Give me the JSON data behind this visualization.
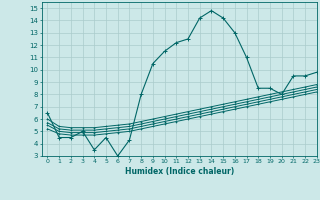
{
  "xlabel": "Humidex (Indice chaleur)",
  "bg_color": "#cce8e8",
  "grid_color": "#aacccc",
  "line_color": "#006666",
  "xlim": [
    -0.5,
    23
  ],
  "ylim": [
    3,
    15.5
  ],
  "xticks": [
    0,
    1,
    2,
    3,
    4,
    5,
    6,
    7,
    8,
    9,
    10,
    11,
    12,
    13,
    14,
    15,
    16,
    17,
    18,
    19,
    20,
    21,
    22,
    23
  ],
  "yticks": [
    3,
    4,
    5,
    6,
    7,
    8,
    9,
    10,
    11,
    12,
    13,
    14,
    15
  ],
  "main_y": [
    6.5,
    4.5,
    4.5,
    5.0,
    3.5,
    4.5,
    3.0,
    4.3,
    8.0,
    10.5,
    11.5,
    12.2,
    12.5,
    14.2,
    14.8,
    14.2,
    13.0,
    11.0,
    8.5,
    8.5,
    8.0,
    9.5,
    9.5,
    9.8
  ],
  "line2_y": [
    5.2,
    4.8,
    4.7,
    4.7,
    4.7,
    4.8,
    4.9,
    5.0,
    5.2,
    5.4,
    5.6,
    5.8,
    6.0,
    6.2,
    6.4,
    6.6,
    6.8,
    7.0,
    7.2,
    7.4,
    7.6,
    7.8,
    8.0,
    8.2
  ],
  "line3_y": [
    5.5,
    5.0,
    4.9,
    4.9,
    4.9,
    5.0,
    5.1,
    5.2,
    5.4,
    5.6,
    5.8,
    6.0,
    6.2,
    6.4,
    6.6,
    6.8,
    7.0,
    7.2,
    7.4,
    7.6,
    7.8,
    8.0,
    8.2,
    8.4
  ],
  "line4_y": [
    5.7,
    5.2,
    5.1,
    5.1,
    5.1,
    5.2,
    5.3,
    5.4,
    5.6,
    5.8,
    6.0,
    6.2,
    6.4,
    6.6,
    6.8,
    7.0,
    7.2,
    7.4,
    7.6,
    7.8,
    8.0,
    8.2,
    8.4,
    8.6
  ],
  "line5_y": [
    6.0,
    5.4,
    5.3,
    5.3,
    5.3,
    5.4,
    5.5,
    5.6,
    5.8,
    6.0,
    6.2,
    6.4,
    6.6,
    6.8,
    7.0,
    7.2,
    7.4,
    7.6,
    7.8,
    8.0,
    8.2,
    8.4,
    8.6,
    8.8
  ]
}
